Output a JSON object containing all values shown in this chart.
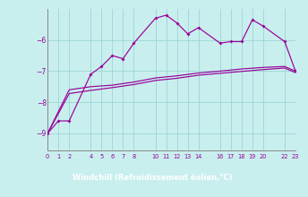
{
  "xlabel": "Windchill (Refroidissement éolien,°C)",
  "background_color": "#c8efee",
  "grid_color": "#9ed4d4",
  "line_color": "#990099",
  "label_bar_color": "#7700aa",
  "label_text_color": "#ffffff",
  "x_ticks": [
    0,
    1,
    2,
    4,
    5,
    6,
    7,
    8,
    10,
    11,
    12,
    13,
    14,
    16,
    17,
    18,
    19,
    20,
    22,
    23
  ],
  "ylim": [
    -9.55,
    -5.0
  ],
  "xlim": [
    0,
    23
  ],
  "y_ticks": [
    -9,
    -8,
    -7,
    -6
  ],
  "series1_x": [
    0,
    1,
    2,
    4,
    5,
    6,
    7,
    8,
    10,
    11,
    12,
    13,
    14,
    16,
    17,
    18,
    19,
    20,
    22,
    23
  ],
  "series1_y": [
    -9.0,
    -8.6,
    -8.6,
    -7.1,
    -6.85,
    -6.5,
    -6.6,
    -6.1,
    -5.3,
    -5.2,
    -5.45,
    -5.8,
    -5.6,
    -6.1,
    -6.05,
    -6.05,
    -5.35,
    -5.55,
    -6.05,
    -7.0
  ],
  "series2_x": [
    0,
    2,
    4,
    6,
    8,
    10,
    12,
    14,
    16,
    18,
    20,
    22,
    23
  ],
  "series2_y": [
    -9.0,
    -7.6,
    -7.5,
    -7.45,
    -7.35,
    -7.22,
    -7.15,
    -7.06,
    -7.0,
    -6.93,
    -6.88,
    -6.85,
    -7.0
  ],
  "series3_x": [
    0,
    2,
    4,
    6,
    8,
    10,
    12,
    14,
    16,
    18,
    20,
    22,
    23
  ],
  "series3_y": [
    -9.0,
    -7.72,
    -7.62,
    -7.53,
    -7.43,
    -7.3,
    -7.23,
    -7.13,
    -7.07,
    -7.01,
    -6.95,
    -6.9,
    -7.05
  ]
}
